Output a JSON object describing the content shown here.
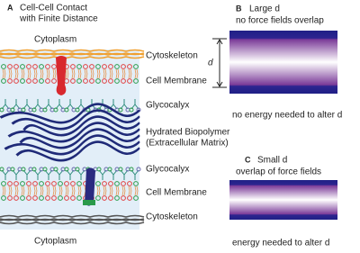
{
  "panel_a": {
    "label": "A",
    "title": [
      "Cell-Cell Contact",
      "with Finite Distance"
    ],
    "top": "Cytoplasm",
    "bottom": "Cytoplasm",
    "layers": [
      "Cytoskeleton",
      "Cell Membrane",
      "Glycocalyx",
      "Hydrated Biopolymer",
      "(Extracellular Matrix)",
      "Glycocalyx",
      "Cell Membrane",
      "Cytoskeleton"
    ]
  },
  "panel_b": {
    "label": "B",
    "title": [
      "Large d",
      "no force fields overlap"
    ],
    "distance": "d",
    "caption": "no energy needed to alter d"
  },
  "panel_c": {
    "label": "C",
    "title": [
      "Small d",
      "overlap of force fields"
    ],
    "caption": "energy needed to alter d"
  }
}
